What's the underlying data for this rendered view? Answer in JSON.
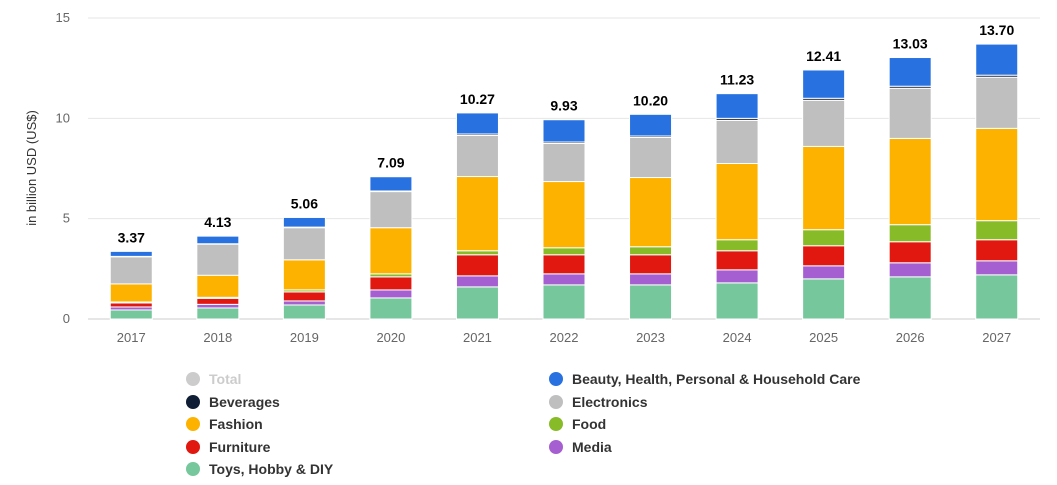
{
  "chart_data": {
    "type": "bar",
    "stacked": true,
    "categories": [
      "2017",
      "2018",
      "2019",
      "2020",
      "2021",
      "2022",
      "2023",
      "2024",
      "2025",
      "2026",
      "2027"
    ],
    "ylabel": "in billion USD (US$)",
    "ylim": [
      0,
      15
    ],
    "yticks": [
      0,
      5,
      10,
      15
    ],
    "grid": true,
    "legend_position": "bottom",
    "totals": [
      3.37,
      4.13,
      5.06,
      7.09,
      10.27,
      9.93,
      10.2,
      11.23,
      12.41,
      13.03,
      13.7
    ],
    "total_labels": [
      "3.37",
      "4.13",
      "5.06",
      "7.09",
      "10.27",
      "9.93",
      "10.20",
      "11.23",
      "12.41",
      "13.03",
      "13.70"
    ],
    "series": [
      {
        "name": "Toys, Hobby & DIY",
        "color": "#76c79b",
        "values": [
          0.45,
          0.55,
          0.7,
          1.05,
          1.6,
          1.7,
          1.7,
          1.8,
          2.0,
          2.1,
          2.2
        ]
      },
      {
        "name": "Media",
        "color": "#a55fd1",
        "values": [
          0.15,
          0.18,
          0.2,
          0.4,
          0.55,
          0.55,
          0.55,
          0.65,
          0.65,
          0.7,
          0.7
        ]
      },
      {
        "name": "Furniture",
        "color": "#e0180f",
        "values": [
          0.2,
          0.3,
          0.45,
          0.65,
          1.05,
          0.95,
          0.95,
          0.95,
          1.0,
          1.05,
          1.05
        ]
      },
      {
        "name": "Food",
        "color": "#87bb27",
        "values": [
          0.05,
          0.05,
          0.1,
          0.15,
          0.2,
          0.35,
          0.4,
          0.55,
          0.8,
          0.85,
          0.95
        ]
      },
      {
        "name": "Fashion",
        "color": "#fdb200",
        "values": [
          0.9,
          1.1,
          1.5,
          2.3,
          3.7,
          3.3,
          3.45,
          3.8,
          4.15,
          4.3,
          4.6
        ]
      },
      {
        "name": "Electronics",
        "color": "#bfbfbf",
        "values": [
          1.35,
          1.55,
          1.6,
          1.8,
          2.05,
          1.9,
          2.0,
          2.15,
          2.3,
          2.5,
          2.55
        ]
      },
      {
        "name": "Beverages",
        "color": "#0f1e35",
        "values": [
          0.02,
          0.02,
          0.03,
          0.03,
          0.07,
          0.07,
          0.07,
          0.1,
          0.1,
          0.1,
          0.1
        ]
      },
      {
        "name": "Beauty, Health, Personal & Household Care",
        "color": "#2771e0",
        "values": [
          0.25,
          0.38,
          0.48,
          0.71,
          1.05,
          1.11,
          1.08,
          1.23,
          1.41,
          1.43,
          1.55
        ]
      }
    ]
  },
  "legend": {
    "items": [
      {
        "label": "Total",
        "color": "#cccccc",
        "hidden": true
      },
      {
        "label": "Beauty, Health, Personal & Household Care",
        "color": "#2771e0"
      },
      {
        "label": "Beverages",
        "color": "#0f1e35"
      },
      {
        "label": "Electronics",
        "color": "#bfbfbf"
      },
      {
        "label": "Fashion",
        "color": "#fdb200"
      },
      {
        "label": "Food",
        "color": "#87bb27"
      },
      {
        "label": "Furniture",
        "color": "#e0180f"
      },
      {
        "label": "Media",
        "color": "#a55fd1"
      },
      {
        "label": "Toys, Hobby & DIY",
        "color": "#76c79b"
      }
    ]
  }
}
